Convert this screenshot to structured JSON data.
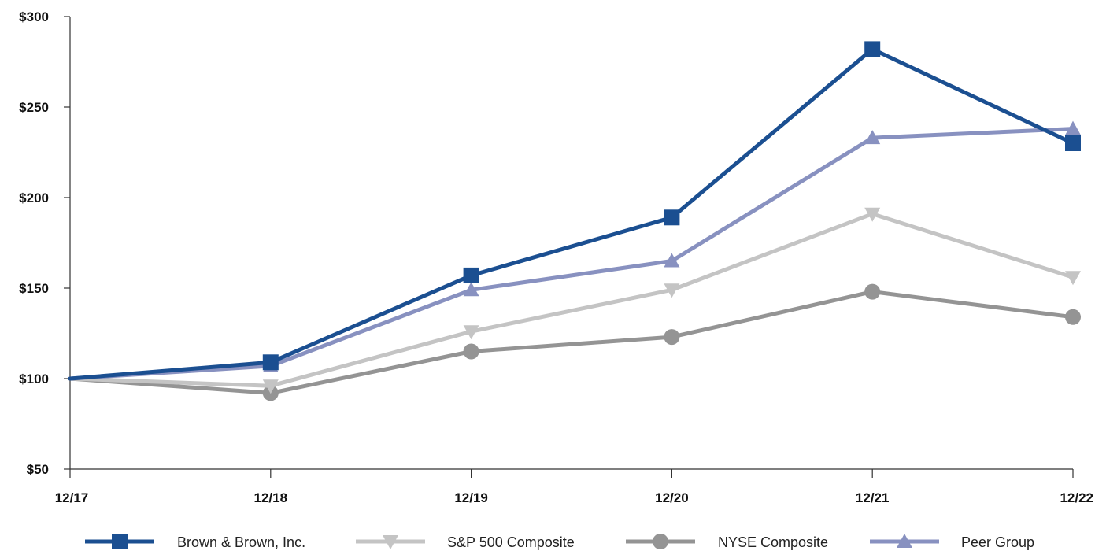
{
  "chart_data": {
    "type": "line",
    "title": "",
    "xlabel": "",
    "ylabel": "",
    "categories": [
      "12/17",
      "12/18",
      "12/19",
      "12/20",
      "12/21",
      "12/22"
    ],
    "ylim": [
      50,
      300
    ],
    "yticks": [
      50,
      100,
      150,
      200,
      250,
      300
    ],
    "ytick_labels": [
      "$50",
      "$100",
      "$150",
      "$200",
      "$250",
      "$300"
    ],
    "grid": false,
    "legend_position": "bottom",
    "series": [
      {
        "name": "Brown & Brown, Inc.",
        "values": [
          100,
          109,
          157,
          189,
          282,
          230
        ],
        "color": "#1B4F91",
        "marker": "square"
      },
      {
        "name": "S&P 500 Composite",
        "values": [
          100,
          96,
          126,
          149,
          191,
          156
        ],
        "color": "#C4C4C4",
        "marker": "triangle-down"
      },
      {
        "name": "NYSE Composite",
        "values": [
          100,
          92,
          115,
          123,
          148,
          134
        ],
        "color": "#949494",
        "marker": "circle"
      },
      {
        "name": "Peer Group",
        "values": [
          100,
          107,
          149,
          165,
          233,
          238
        ],
        "color": "#8891C0",
        "marker": "triangle-up"
      }
    ]
  }
}
